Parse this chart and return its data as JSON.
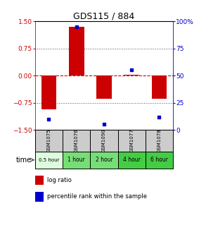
{
  "title": "GDS115 / 884",
  "samples": [
    "GSM1075",
    "GSM1076",
    "GSM1090",
    "GSM1077",
    "GSM1078"
  ],
  "time_labels": [
    "0.5 hour",
    "1 hour",
    "2 hour",
    "4 hour",
    "6 hour"
  ],
  "time_colors": [
    "#ddfcdd",
    "#77dd77",
    "#77dd77",
    "#44cc44",
    "#44cc44"
  ],
  "log_ratios": [
    -0.93,
    1.35,
    -0.65,
    0.02,
    -0.65
  ],
  "percentile_ranks": [
    10,
    95,
    5,
    55,
    12
  ],
  "bar_color": "#cc0000",
  "dot_color": "#0000cc",
  "ylim_left": [
    -1.5,
    1.5
  ],
  "yticks_left": [
    -1.5,
    -0.75,
    0,
    0.75,
    1.5
  ],
  "yticks_right": [
    0,
    25,
    50,
    75,
    100
  ],
  "hline_color": "#cc0000",
  "grid_color": "#555555",
  "legend_log_ratio": "log ratio",
  "legend_percentile": "percentile rank within the sample",
  "bar_width": 0.55
}
